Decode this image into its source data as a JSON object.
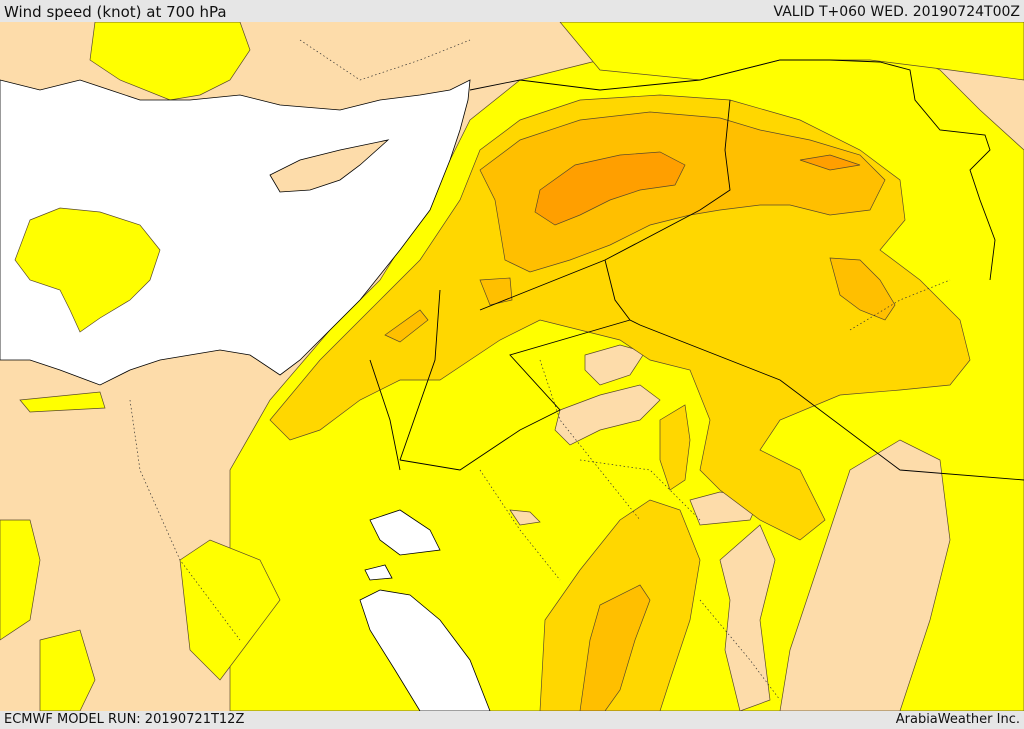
{
  "header": {
    "title": "Wind speed (knot) at 700 hPa",
    "valid": "VALID T+060 WED. 20190724T00Z"
  },
  "footer": {
    "model_run": "ECMWF MODEL RUN: 20190721T12Z",
    "credit": "ArabiaWeather Inc."
  },
  "colors": {
    "sea": "#ffffff",
    "land_calm": "#fddcaa",
    "band_1": "#ffff00",
    "band_2": "#ffd700",
    "band_3": "#ffbf00",
    "band_4": "#ff9f00",
    "contour": "#5a4a2a",
    "border": "#000000"
  }
}
